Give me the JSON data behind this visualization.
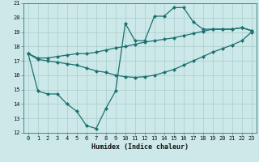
{
  "xlabel": "Humidex (Indice chaleur)",
  "bg_color": "#cce8e8",
  "grid_color": "#aacccc",
  "line_color": "#1a7070",
  "xlim": [
    -0.5,
    23.5
  ],
  "ylim": [
    12,
    21
  ],
  "xticks": [
    0,
    1,
    2,
    3,
    4,
    5,
    6,
    7,
    8,
    9,
    10,
    11,
    12,
    13,
    14,
    15,
    16,
    17,
    18,
    19,
    20,
    21,
    22,
    23
  ],
  "yticks": [
    12,
    13,
    14,
    15,
    16,
    17,
    18,
    19,
    20,
    21
  ],
  "line1_x": [
    0,
    1,
    2,
    3,
    4,
    5,
    6,
    7,
    8,
    9,
    10,
    11,
    12,
    13,
    14,
    15,
    16,
    17,
    18,
    19,
    20,
    21,
    22,
    23
  ],
  "line1_y": [
    17.5,
    17.2,
    17.2,
    17.3,
    17.4,
    17.5,
    17.5,
    17.6,
    17.75,
    17.9,
    18.0,
    18.15,
    18.3,
    18.4,
    18.5,
    18.6,
    18.75,
    18.9,
    19.05,
    19.2,
    19.2,
    19.2,
    19.3,
    19.1
  ],
  "line2_x": [
    0,
    1,
    2,
    3,
    4,
    5,
    6,
    7,
    8,
    9,
    10,
    11,
    12,
    13,
    14,
    15,
    16,
    17,
    18,
    19,
    20,
    21,
    22,
    23
  ],
  "line2_y": [
    17.5,
    17.1,
    17.0,
    16.9,
    16.8,
    16.7,
    16.5,
    16.3,
    16.2,
    16.0,
    15.9,
    15.85,
    15.9,
    16.0,
    16.2,
    16.4,
    16.7,
    17.0,
    17.3,
    17.6,
    17.85,
    18.1,
    18.4,
    19.0
  ],
  "line3_x": [
    0,
    1,
    2,
    3,
    4,
    5,
    6,
    7,
    8,
    9,
    10,
    11,
    12,
    13,
    14,
    15,
    16,
    17,
    18,
    19,
    20,
    21,
    22,
    23
  ],
  "line3_y": [
    17.5,
    14.9,
    14.7,
    14.7,
    14.0,
    13.5,
    12.5,
    12.3,
    13.7,
    14.9,
    19.6,
    18.4,
    18.4,
    20.1,
    20.1,
    20.7,
    20.7,
    19.7,
    19.2,
    19.2,
    19.2,
    19.2,
    19.3,
    19.1
  ],
  "markersize": 2.5,
  "linewidth": 0.9,
  "tick_fontsize": 5,
  "label_fontsize": 6
}
